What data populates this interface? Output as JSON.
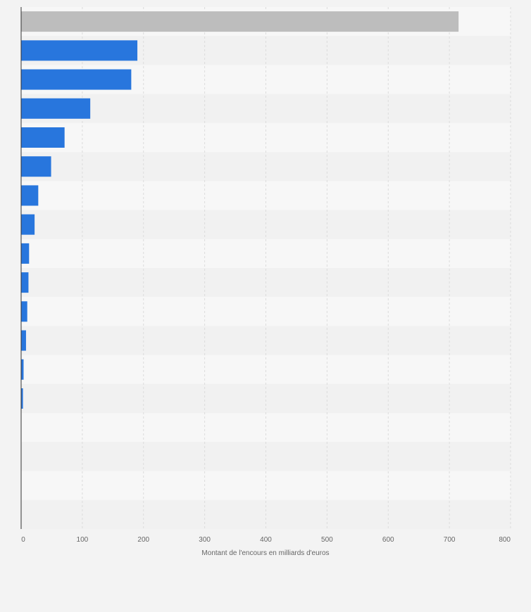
{
  "chart_data": {
    "type": "bar",
    "orientation": "horizontal",
    "title": "",
    "xlabel": "Montant de l'encours en milliards d'euros",
    "ylabel": "",
    "xlim": [
      0,
      800
    ],
    "x_ticks": [
      0,
      100,
      200,
      300,
      400,
      500,
      600,
      700,
      800
    ],
    "grid": true,
    "legend": "none",
    "categories": [
      "",
      "",
      "",
      "",
      "",
      "",
      "",
      "",
      "",
      "",
      "",
      "",
      "",
      "",
      "",
      "",
      "",
      ""
    ],
    "values": [
      715,
      190,
      180,
      113,
      71,
      49,
      28,
      22,
      13,
      12,
      10,
      8,
      4,
      3,
      0,
      0,
      0,
      0
    ],
    "highlight_index": 0,
    "colors": {
      "bar": "#2876dd",
      "highlight": "#bdbdbd",
      "band_light": "#f7f7f7",
      "band_dark": "#f1f1f1",
      "grid": "#dcdcdc",
      "axis": "#333333",
      "tick_text": "#666666",
      "background": "#f3f3f3"
    }
  }
}
